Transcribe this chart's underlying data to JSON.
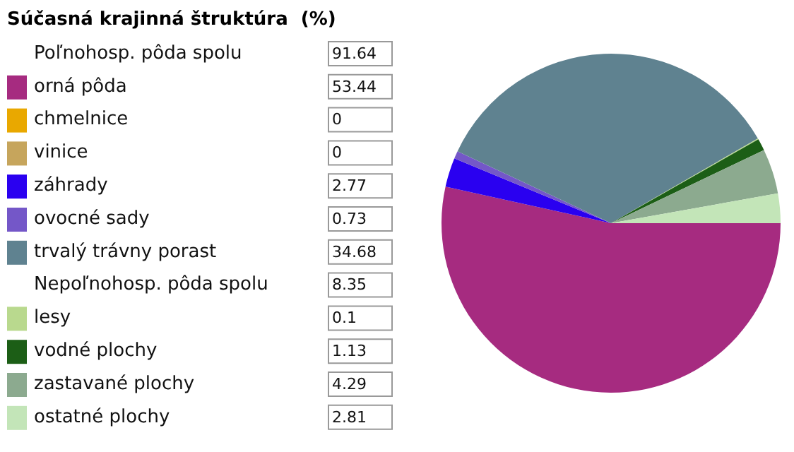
{
  "chart_data": {
    "type": "pie",
    "title": "Súčasná krajinná štruktúra  (%)",
    "categories": [
      "orná pôda",
      "chmelnice",
      "vinice",
      "záhrady",
      "ovocné sady",
      "trvalý trávny porast",
      "lesy",
      "vodné plochy",
      "zastavané plochy",
      "ostatné plochy"
    ],
    "values": [
      53.44,
      0,
      0,
      2.77,
      0.73,
      34.68,
      0.1,
      1.13,
      4.29,
      2.81
    ],
    "colors": [
      "#a62b80",
      "#e9a800",
      "#c6a55c",
      "#2a00f0",
      "#7457c8",
      "#5f8290",
      "#b9d98e",
      "#1c5e16",
      "#8caa8f",
      "#c3e5b8"
    ],
    "value_labels": [
      "53.44",
      "0",
      "0",
      "2.77",
      "0.73",
      "34.68",
      "0.1",
      "1.13",
      "4.29",
      "2.81"
    ],
    "legend": "left",
    "annotations": [
      {
        "text": "Poľnohosp. pôda spolu 91.64",
        "x": "orná pôda"
      },
      {
        "text": "Nepoľnohosp. pôda spolu 8.35",
        "x": "lesy"
      }
    ]
  }
}
